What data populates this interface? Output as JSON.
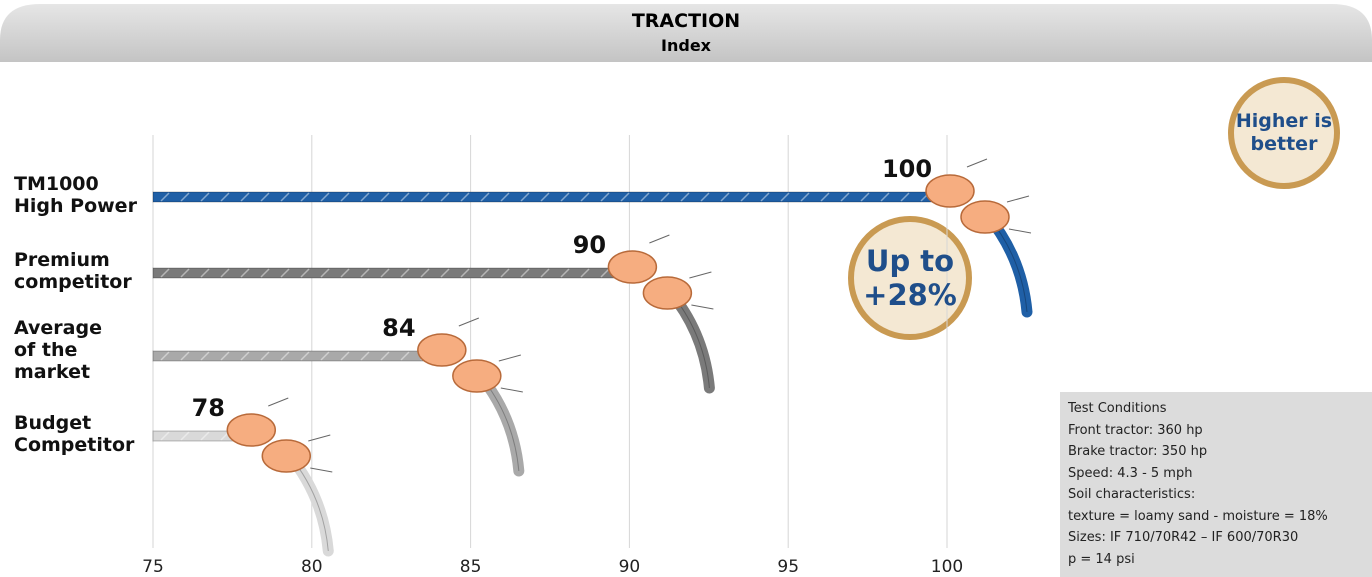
{
  "chart_data": {
    "type": "bar",
    "orientation": "horizontal",
    "title": "TRACTION",
    "subtitle": "Index",
    "categories": [
      "TM1000\nHigh Power",
      "Premium\ncompetitor",
      "Average\nof the\nmarket",
      "Budget\nCompetitor"
    ],
    "values": [
      100,
      90,
      84,
      78
    ],
    "colors": [
      "#1f5fa6",
      "#7a7a7a",
      "#a9a9a9",
      "#d9d9d9"
    ],
    "xlim": [
      75,
      100
    ],
    "xticks": [
      75,
      80,
      85,
      90,
      95,
      100
    ],
    "grid": true,
    "annotations": {
      "badge": "Higher is\nbetter",
      "highlight": "Up to\n+28%",
      "test_conditions": [
        "Test Conditions",
        "Front tractor: 360 hp",
        "Brake tractor: 350 hp",
        "Speed: 4.3 - 5 mph",
        "Soil characteristics:",
        "texture = loamy sand - moisture = 18%",
        "Sizes: IF 710/70R42 – IF 600/70R30",
        "p = 14 psi"
      ]
    }
  }
}
